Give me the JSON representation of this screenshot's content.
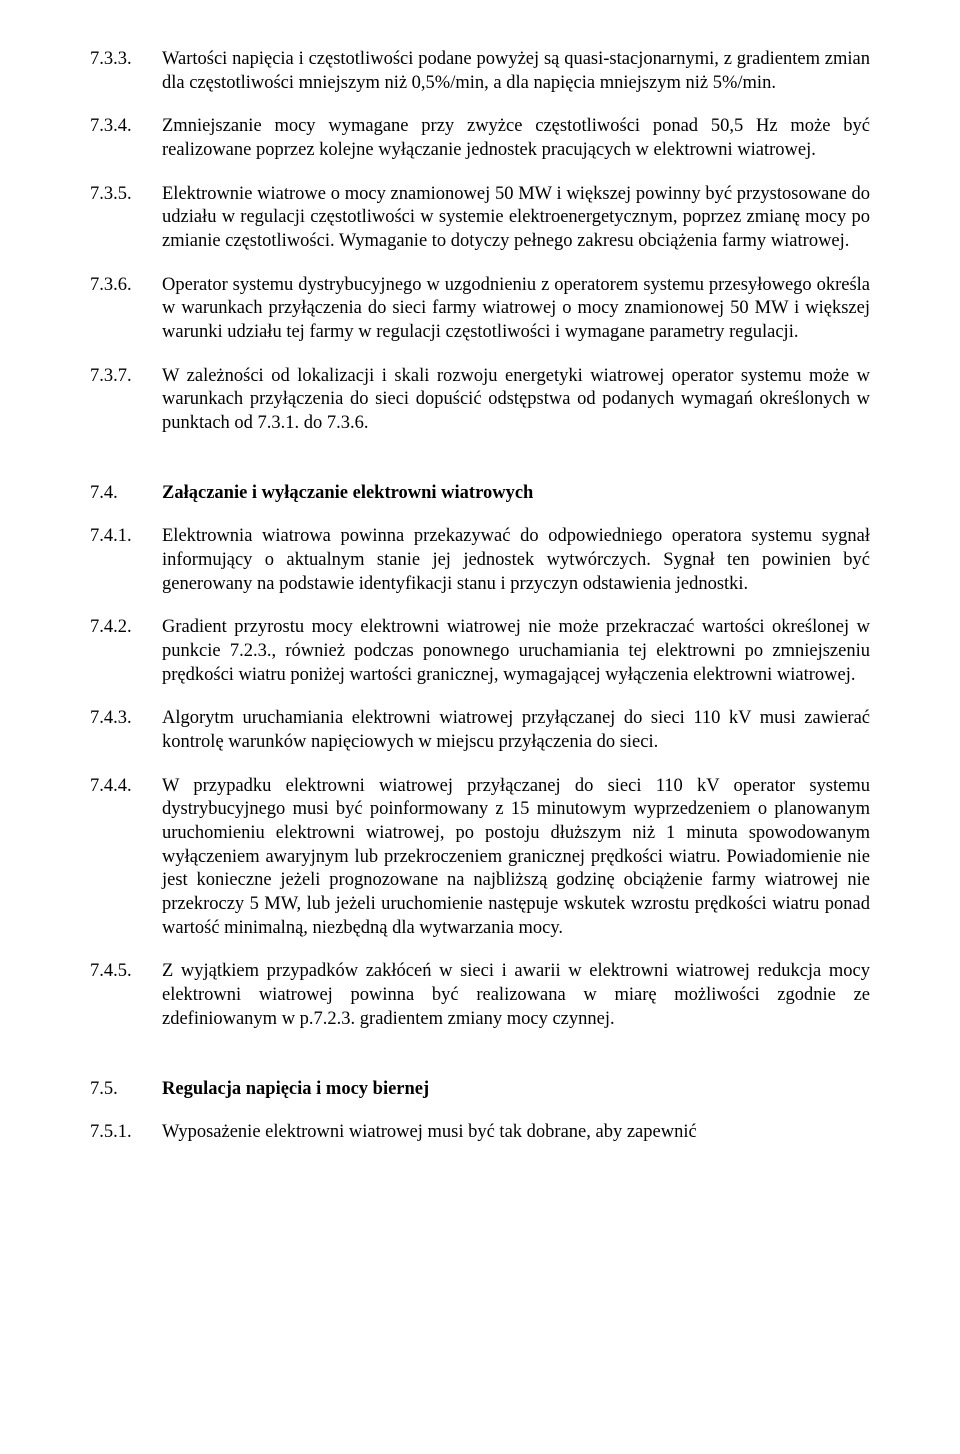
{
  "items": [
    {
      "num": "7.3.3.",
      "text": "Wartości napięcia i częstotliwości podane powyżej są quasi-stacjonarnymi, z gradientem zmian dla częstotliwości mniejszym niż 0,5%/min, a dla napięcia mniejszym niż 5%/min."
    },
    {
      "num": "7.3.4.",
      "text": "Zmniejszanie mocy wymagane przy zwyżce częstotliwości ponad 50,5 Hz może być realizowane poprzez kolejne wyłączanie jednostek pracujących w elektrowni wiatrowej."
    },
    {
      "num": "7.3.5.",
      "text": "Elektrownie wiatrowe o mocy znamionowej 50 MW i większej powinny być przystosowane do udziału w regulacji częstotliwości w systemie elektroenergetycznym, poprzez zmianę mocy po zmianie częstotliwości. Wymaganie to dotyczy pełnego zakresu obciążenia farmy wiatrowej."
    },
    {
      "num": "7.3.6.",
      "text": "Operator systemu dystrybucyjnego w uzgodnieniu z operatorem systemu przesyłowego określa w warunkach przyłączenia do sieci farmy wiatrowej o mocy znamionowej 50 MW i większej warunki udziału tej farmy w regulacji częstotliwości i wymagane parametry regulacji."
    },
    {
      "num": "7.3.7.",
      "text": "W zależności od lokalizacji i skali rozwoju energetyki wiatrowej operator systemu może w warunkach przyłączenia do sieci dopuścić odstępstwa od podanych wymagań określonych w punktach od 7.3.1. do 7.3.6."
    }
  ],
  "section74": {
    "num": "7.4.",
    "title": "Załączanie i wyłączanie elektrowni wiatrowych",
    "items": [
      {
        "num": "7.4.1.",
        "text": "Elektrownia wiatrowa powinna przekazywać do odpowiedniego operatora systemu sygnał informujący o aktualnym stanie jej jednostek wytwórczych. Sygnał ten powinien być generowany na podstawie identyfikacji stanu i przyczyn odstawienia jednostki."
      },
      {
        "num": "7.4.2.",
        "text": "Gradient przyrostu mocy elektrowni wiatrowej nie może przekraczać wartości określonej w punkcie 7.2.3., również podczas ponownego uruchamiania tej elektrowni po zmniejszeniu prędkości wiatru poniżej wartości granicznej, wymagającej wyłączenia elektrowni wiatrowej."
      },
      {
        "num": "7.4.3.",
        "text": "Algorytm uruchamiania elektrowni wiatrowej przyłączanej do sieci 110 kV musi zawierać kontrolę warunków napięciowych w miejscu przyłączenia do sieci."
      },
      {
        "num": "7.4.4.",
        "text": "W przypadku elektrowni wiatrowej przyłączanej do sieci 110 kV operator systemu dystrybucyjnego musi być poinformowany z 15 minutowym wyprzedzeniem o planowanym uruchomieniu elektrowni wiatrowej, po postoju dłuższym niż 1 minuta spowodowanym wyłączeniem awaryjnym lub przekroczeniem granicznej prędkości wiatru. Powiadomienie nie jest konieczne jeżeli prognozowane na najbliższą godzinę obciążenie farmy wiatrowej nie przekroczy 5 MW, lub jeżeli uruchomienie następuje wskutek wzrostu prędkości wiatru ponad wartość minimalną, niezbędną dla wytwarzania mocy."
      },
      {
        "num": "7.4.5.",
        "text": "Z wyjątkiem przypadków zakłóceń w sieci i awarii w elektrowni wiatrowej redukcja mocy elektrowni wiatrowej powinna być realizowana w miarę możliwości zgodnie ze zdefiniowanym w p.7.2.3. gradientem zmiany mocy czynnej."
      }
    ]
  },
  "section75": {
    "num": "7.5.",
    "title": "Regulacja napięcia i mocy biernej",
    "items": [
      {
        "num": "7.5.1.",
        "text": "Wyposażenie elektrowni wiatrowej musi być tak dobrane, aby zapewnić"
      }
    ]
  }
}
